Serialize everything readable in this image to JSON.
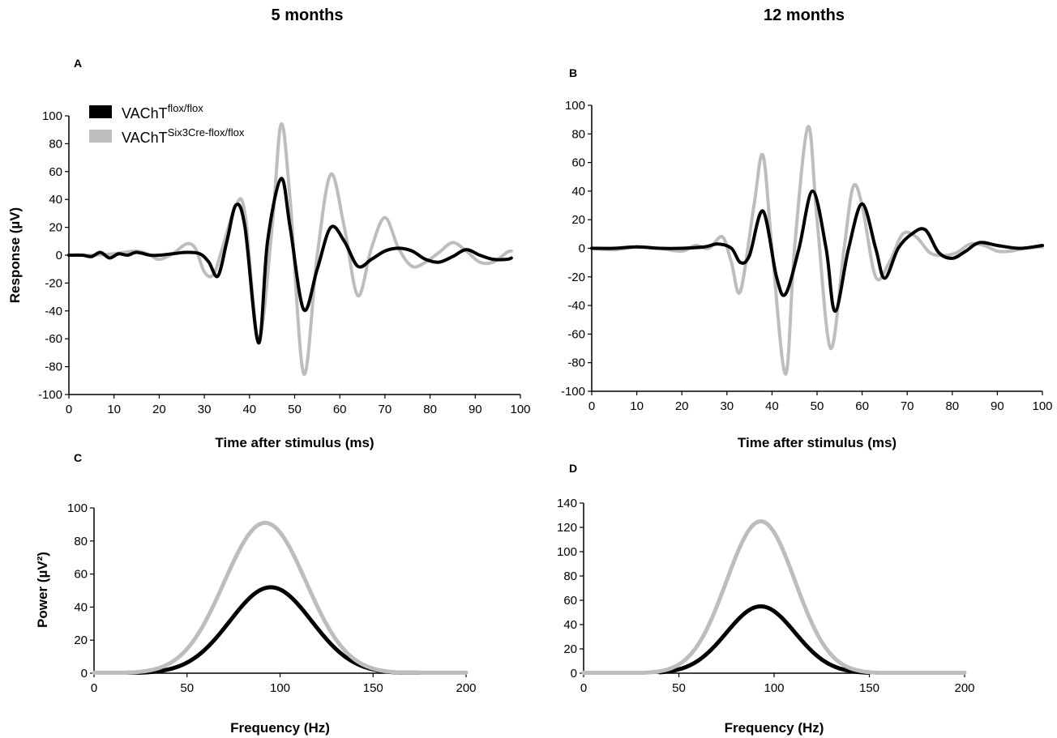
{
  "column_titles": [
    "5 months",
    "12 months"
  ],
  "legend": {
    "base": "VAChT",
    "items": [
      {
        "sup": "flox/flox",
        "color": "#000000"
      },
      {
        "sup": "Six3Cre-flox/flox",
        "color": "#bdbdbd"
      }
    ]
  },
  "colors": {
    "control": "#000000",
    "knockout": "#bdbdbd"
  },
  "chart_data": [
    {
      "panel": "A",
      "type": "line",
      "xlabel": "Time after stimulus (ms)",
      "ylabel": "Response (µV)",
      "xlim": [
        0,
        100
      ],
      "ylim": [
        -100,
        100
      ],
      "xticks": [
        0,
        10,
        20,
        30,
        40,
        50,
        60,
        70,
        80,
        90,
        100
      ],
      "yticks": [
        -100,
        -80,
        -60,
        -40,
        -20,
        0,
        20,
        40,
        60,
        80,
        100
      ],
      "series": [
        {
          "color": "#bdbdbd",
          "x": [
            0,
            5,
            10,
            15,
            18,
            20,
            23,
            26,
            28,
            30,
            32,
            34,
            37,
            39,
            42,
            45,
            47,
            49,
            52,
            55,
            58,
            61,
            64,
            67,
            70,
            73,
            76,
            79,
            82,
            85,
            88,
            91,
            94,
            97,
            98
          ],
          "y": [
            0,
            0,
            1,
            3,
            0,
            -3,
            1,
            8,
            5,
            -12,
            -14,
            5,
            36,
            30,
            -60,
            20,
            94,
            40,
            -85,
            0,
            58,
            20,
            -29,
            5,
            27,
            5,
            -8,
            -5,
            2,
            9,
            3,
            -5,
            -5,
            2,
            3
          ]
        },
        {
          "color": "#000000",
          "x": [
            0,
            3,
            5,
            7,
            9,
            11,
            13,
            15,
            18,
            20,
            23,
            26,
            29,
            31,
            33,
            35,
            37,
            39,
            42,
            44,
            47,
            49,
            52,
            55,
            58,
            61,
            64,
            67,
            70,
            73,
            76,
            79,
            82,
            85,
            88,
            91,
            94,
            97,
            98
          ],
          "y": [
            0,
            0,
            -1,
            2,
            -2,
            1,
            0,
            2,
            0,
            0,
            1,
            2,
            1,
            -5,
            -15,
            10,
            36,
            20,
            -63,
            10,
            55,
            20,
            -39,
            -10,
            20,
            10,
            -8,
            -3,
            3,
            5,
            3,
            -3,
            -5,
            -1,
            4,
            0,
            -3,
            -3,
            -2
          ]
        }
      ]
    },
    {
      "panel": "B",
      "type": "line",
      "xlabel": "Time after stimulus (ms)",
      "ylabel": "",
      "xlim": [
        0,
        100
      ],
      "ylim": [
        -100,
        100
      ],
      "xticks": [
        0,
        10,
        20,
        30,
        40,
        50,
        60,
        70,
        80,
        90,
        100
      ],
      "yticks": [
        -100,
        -80,
        -60,
        -40,
        -20,
        0,
        20,
        40,
        60,
        80,
        100
      ],
      "series": [
        {
          "color": "#bdbdbd",
          "x": [
            0,
            5,
            10,
            15,
            20,
            23,
            26,
            29,
            31,
            33,
            36,
            38,
            40,
            43,
            45,
            48,
            50,
            53,
            56,
            58,
            60,
            63,
            66,
            69,
            72,
            75,
            78,
            81,
            84,
            87,
            90,
            93,
            96,
            100
          ],
          "y": [
            0,
            -1,
            1,
            0,
            -2,
            2,
            0,
            8,
            -10,
            -30,
            30,
            65,
            0,
            -88,
            0,
            85,
            20,
            -70,
            0,
            43,
            30,
            -20,
            -10,
            10,
            8,
            -3,
            -5,
            -3,
            3,
            2,
            -2,
            -2,
            0,
            1
          ]
        },
        {
          "color": "#000000",
          "x": [
            0,
            5,
            10,
            15,
            20,
            25,
            28,
            31,
            33,
            35,
            38,
            41,
            43,
            46,
            49,
            52,
            54,
            57,
            60,
            63,
            65,
            68,
            71,
            74,
            77,
            80,
            83,
            86,
            90,
            95,
            100
          ],
          "y": [
            0,
            0,
            1,
            0,
            0,
            1,
            3,
            0,
            -10,
            -5,
            26,
            -20,
            -32,
            0,
            40,
            0,
            -44,
            0,
            31,
            0,
            -21,
            0,
            10,
            13,
            -3,
            -7,
            -2,
            4,
            2,
            0,
            2
          ]
        }
      ]
    },
    {
      "panel": "C",
      "type": "line",
      "xlabel": "Frequency (Hz)",
      "ylabel": "Power (µV²)",
      "xlim": [
        0,
        200
      ],
      "ylim": [
        0,
        100
      ],
      "xticks": [
        0,
        50,
        100,
        150,
        200
      ],
      "yticks": [
        0,
        20,
        40,
        60,
        80,
        100
      ],
      "series": [
        {
          "color": "#000000",
          "peak_x": 95,
          "peak_y": 52,
          "x_start": 18,
          "x_end": 175
        },
        {
          "color": "#bdbdbd",
          "peak_x": 92,
          "peak_y": 91,
          "x_start": 0,
          "x_end": 200
        }
      ]
    },
    {
      "panel": "D",
      "type": "line",
      "xlabel": "Frequency (Hz)",
      "ylabel": "",
      "xlim": [
        0,
        200
      ],
      "ylim": [
        0,
        140
      ],
      "xticks": [
        0,
        50,
        100,
        150,
        200
      ],
      "yticks": [
        0,
        20,
        40,
        60,
        80,
        100,
        120,
        140
      ],
      "series": [
        {
          "color": "#000000",
          "peak_x": 93,
          "peak_y": 55,
          "x_start": 40,
          "x_end": 150
        },
        {
          "color": "#bdbdbd",
          "peak_x": 93,
          "peak_y": 125,
          "x_start": 0,
          "x_end": 200
        }
      ]
    }
  ]
}
